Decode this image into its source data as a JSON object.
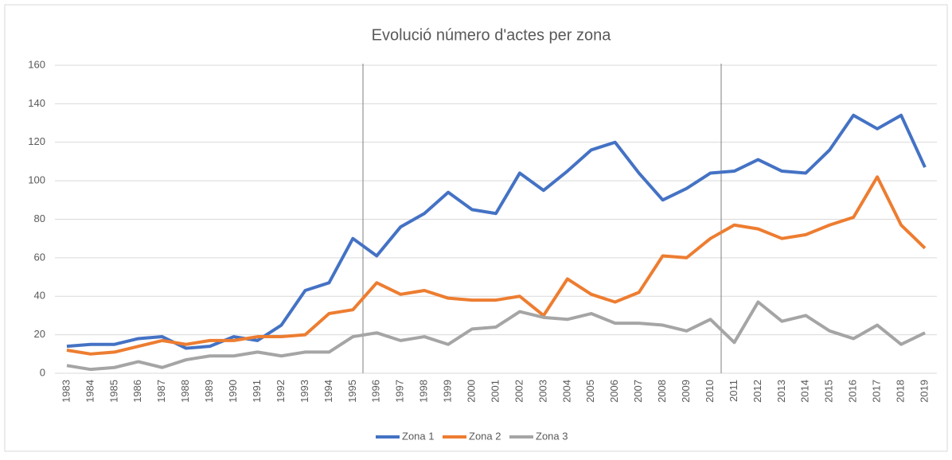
{
  "chart_data": {
    "type": "line",
    "title": "Evolució número d'actes per zona",
    "categories": [
      "1983",
      "1984",
      "1985",
      "1986",
      "1987",
      "1988",
      "1989",
      "1990",
      "1991",
      "1992",
      "1993",
      "1994",
      "1995",
      "1996",
      "1997",
      "1998",
      "1999",
      "2000",
      "2001",
      "2002",
      "2003",
      "2004",
      "2005",
      "2006",
      "2007",
      "2008",
      "2009",
      "2010",
      "2011",
      "2012",
      "2013",
      "2014",
      "2015",
      "2016",
      "2017",
      "2018",
      "2019"
    ],
    "series": [
      {
        "name": "Zona 1",
        "color": "#4472c4",
        "values": [
          14,
          15,
          15,
          18,
          19,
          13,
          14,
          19,
          17,
          25,
          43,
          47,
          70,
          61,
          76,
          83,
          94,
          85,
          83,
          104,
          95,
          105,
          116,
          120,
          104,
          90,
          96,
          104,
          105,
          111,
          105,
          104,
          116,
          134,
          127,
          134,
          107
        ]
      },
      {
        "name": "Zona 2",
        "color": "#ed7d31",
        "values": [
          12,
          10,
          11,
          14,
          17,
          15,
          17,
          17,
          19,
          19,
          20,
          31,
          33,
          47,
          41,
          43,
          39,
          38,
          38,
          40,
          30,
          49,
          41,
          37,
          42,
          61,
          60,
          70,
          77,
          75,
          70,
          72,
          77,
          81,
          102,
          77,
          65
        ]
      },
      {
        "name": "Zona 3",
        "color": "#a5a5a5",
        "values": [
          4,
          2,
          3,
          6,
          3,
          7,
          9,
          9,
          11,
          9,
          11,
          11,
          19,
          21,
          17,
          19,
          15,
          23,
          24,
          32,
          29,
          28,
          31,
          26,
          26,
          25,
          22,
          28,
          16,
          37,
          27,
          30,
          22,
          18,
          25,
          15,
          21
        ]
      }
    ],
    "ylim": [
      0,
      160
    ],
    "yticks": [
      0,
      20,
      40,
      60,
      80,
      100,
      120,
      140,
      160
    ],
    "grid": true,
    "legend": "bottom"
  }
}
